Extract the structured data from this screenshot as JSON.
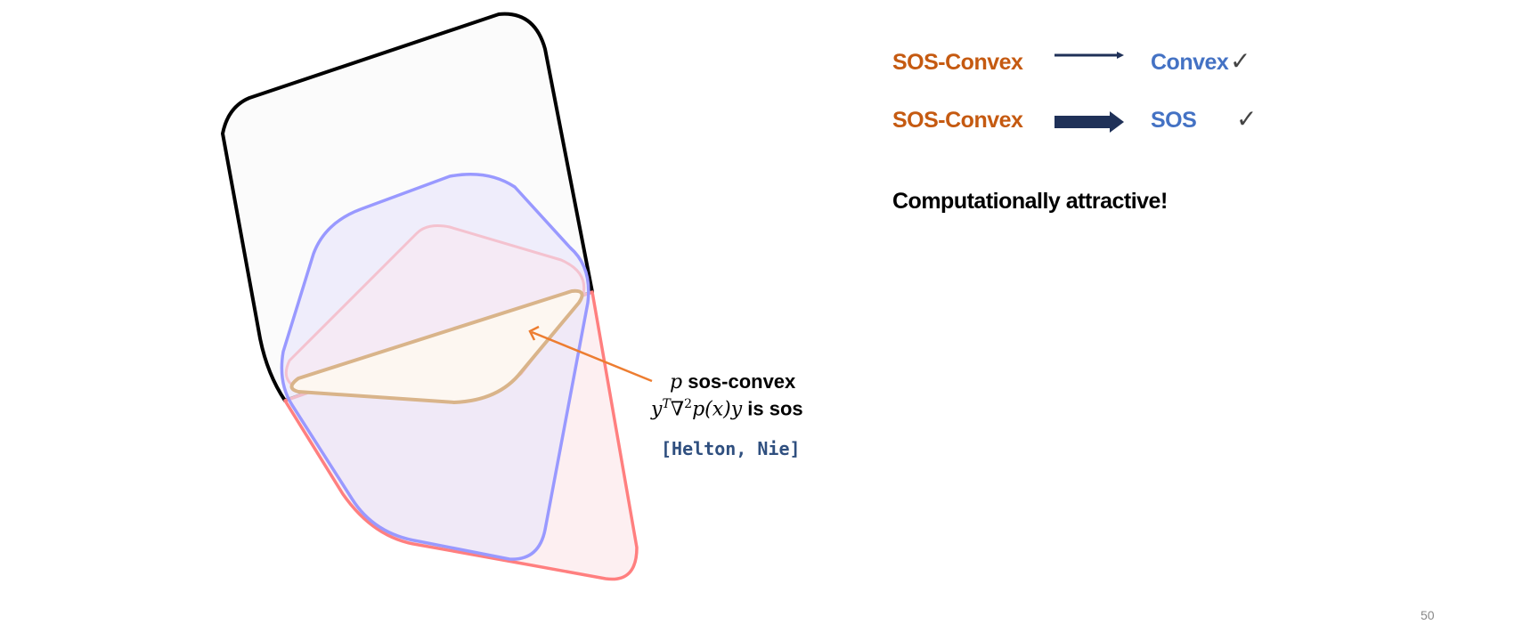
{
  "annotation": {
    "var": "p",
    "label": "sos-convex",
    "formula_lhs": "y",
    "formula_sup_t": "T",
    "formula_nabla": "∇",
    "formula_sup_2": "2",
    "formula_rest": "p(x)y",
    "formula_suffix": "is sos",
    "citation": "[Helton, Nie]"
  },
  "implications": [
    {
      "from": "SOS-Convex",
      "to": "Convex",
      "mark": "✓"
    },
    {
      "from": "SOS-Convex",
      "to": "SOS",
      "mark": "✓"
    }
  ],
  "remark": "Computationally attractive!",
  "page_number": "50",
  "colors": {
    "orange": "#c55a11",
    "blue": "#4472c4",
    "arrow_dark": "#1f3158",
    "black_set": "#000000",
    "blue_set": "#9999ff",
    "red_set": "#ff7f7f",
    "pink_set": "#f4c2cf",
    "tan_set": "#d9b48a",
    "annotation_arrow": "#ed7d31"
  },
  "icons": {
    "arrow_thin": "right-arrow-thin-icon",
    "arrow_thick": "right-arrow-thick-icon",
    "check": "check-icon"
  }
}
